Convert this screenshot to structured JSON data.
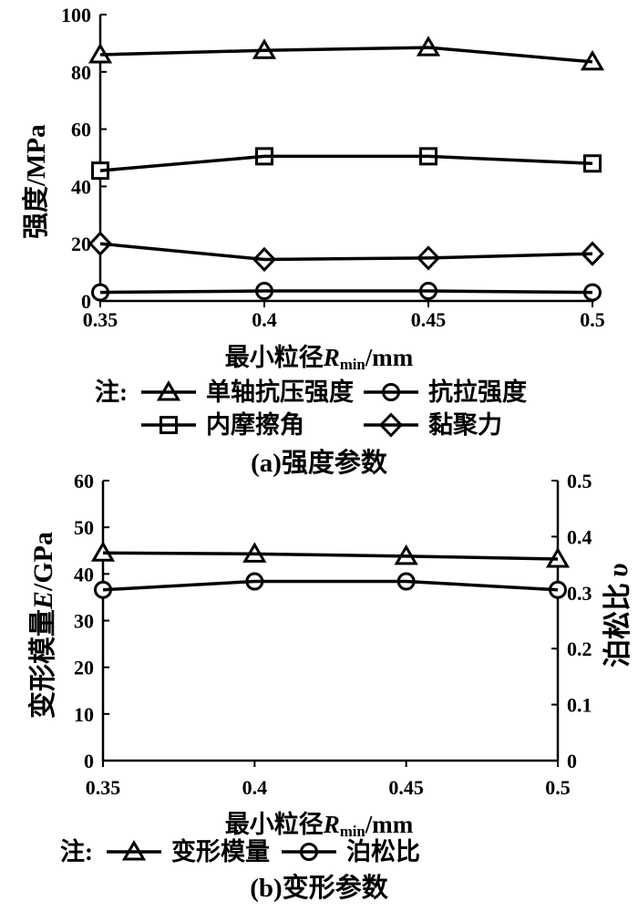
{
  "figure": {
    "background": "#ffffff",
    "colors": {
      "stroke": "#000000",
      "marker_fill": "#ffffff",
      "text": "#000000"
    }
  },
  "chart_data": [
    {
      "id": "a",
      "type": "line",
      "caption": "(a)强度参数",
      "x": [
        0.35,
        0.4,
        0.45,
        0.5
      ],
      "x_tick_labels": [
        "0.35",
        "0.4",
        "0.45",
        "0.5"
      ],
      "xlim": [
        0.35,
        0.5
      ],
      "ylim": [
        0,
        100
      ],
      "y_ticks": [
        0,
        20,
        40,
        60,
        80,
        100
      ],
      "ylabel": "强度/MPa",
      "xlabel": {
        "prefix": "最小粒径",
        "var": "R",
        "sub": "min",
        "suffix": "/mm"
      },
      "grid": false,
      "legend_position": "below",
      "legend_note": "注:",
      "series": [
        {
          "name": "单轴抗压强度",
          "marker": "triangle",
          "axis": "left",
          "values": [
            86,
            87.5,
            88.5,
            83.5
          ]
        },
        {
          "name": "内摩擦角",
          "marker": "square",
          "axis": "left",
          "values": [
            45.5,
            50.5,
            50.5,
            48
          ]
        },
        {
          "name": "黏聚力",
          "marker": "diamond",
          "axis": "left",
          "values": [
            20,
            14.5,
            15,
            16.5
          ]
        },
        {
          "name": "抗拉强度",
          "marker": "circle",
          "axis": "left",
          "values": [
            3,
            3.5,
            3.5,
            3
          ]
        }
      ],
      "legend_rows": [
        [
          {
            "marker": "triangle",
            "label": "单轴抗压强度"
          },
          {
            "marker": "circle",
            "label": "抗拉强度"
          }
        ],
        [
          {
            "marker": "square",
            "label": "内摩擦角"
          },
          {
            "marker": "diamond",
            "label": "黏聚力"
          }
        ]
      ]
    },
    {
      "id": "b",
      "type": "line",
      "caption": "(b)变形参数",
      "x": [
        0.35,
        0.4,
        0.45,
        0.5
      ],
      "x_tick_labels": [
        "0.35",
        "0.4",
        "0.45",
        "0.5"
      ],
      "xlim": [
        0.35,
        0.5
      ],
      "ylim_left": [
        0,
        60
      ],
      "y_ticks_left": [
        0,
        10,
        20,
        30,
        40,
        50,
        60
      ],
      "ylim_right": [
        0,
        0.5
      ],
      "y_ticks_right": [
        "0",
        "0.1",
        "0.2",
        "0.3",
        "0.4",
        "0.5"
      ],
      "ylabel_left": {
        "prefix": "变形模量",
        "var": "E",
        "suffix": "/GPa"
      },
      "ylabel_right": {
        "prefix": "泊松比",
        "var": "υ"
      },
      "xlabel": {
        "prefix": "最小粒径",
        "var": "R",
        "sub": "min",
        "suffix": "/mm"
      },
      "grid": false,
      "legend_position": "below",
      "legend_note": "注:",
      "series": [
        {
          "name": "变形模量",
          "marker": "triangle",
          "axis": "left",
          "values": [
            44.5,
            44.3,
            43.8,
            43.2
          ]
        },
        {
          "name": "泊松比",
          "marker": "circle",
          "axis": "right",
          "values": [
            0.305,
            0.32,
            0.32,
            0.305
          ]
        }
      ],
      "legend_rows": [
        [
          {
            "marker": "triangle",
            "label": "变形模量"
          },
          {
            "marker": "circle",
            "label": "泊松比"
          }
        ]
      ]
    }
  ]
}
